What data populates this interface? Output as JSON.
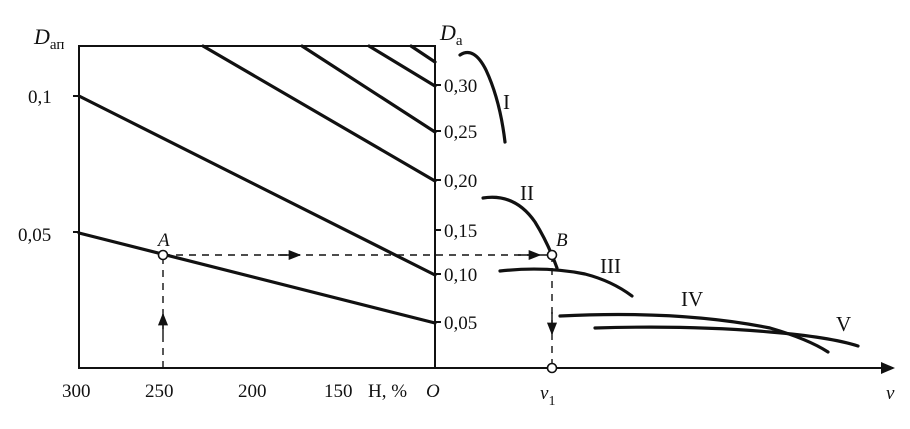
{
  "left_axis": {
    "label_main": "D",
    "label_sub": "ап",
    "ticks": [
      "0,1",
      "0,05"
    ]
  },
  "right_axis": {
    "label_main": "D",
    "label_sub": "a",
    "ticks": [
      "0,30",
      "0,25",
      "0,20",
      "0,15",
      "0,10",
      "0,05"
    ]
  },
  "h_axis": {
    "ticks": [
      "300",
      "250",
      "200",
      "150"
    ],
    "label": "H, %",
    "origin": "O"
  },
  "v_axis": {
    "label": "v",
    "tick_main": "v",
    "tick_sub": "1"
  },
  "points": {
    "a": "A",
    "b": "B"
  },
  "curves": [
    "I",
    "II",
    "III",
    "IV",
    "V"
  ]
}
